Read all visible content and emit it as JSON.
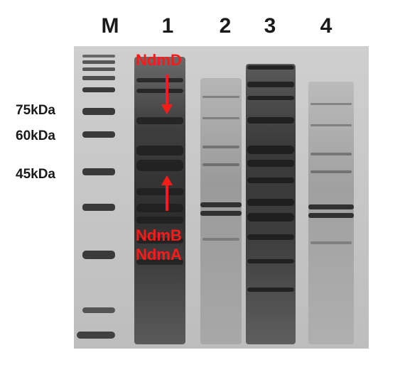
{
  "lanes": {
    "m": "M",
    "l1": "1",
    "l2": "2",
    "l3": "3",
    "l4": "4"
  },
  "markers": {
    "m75": "75kDa",
    "m60": "60kDa",
    "m45": "45kDa"
  },
  "annotations": {
    "ndmd": "NdmD",
    "ndmb": "NdmB",
    "ndma": "NdmA"
  },
  "colors": {
    "annotation": "#ff1a1a",
    "gel_background": "#c8c8c8",
    "band": "#232323"
  }
}
